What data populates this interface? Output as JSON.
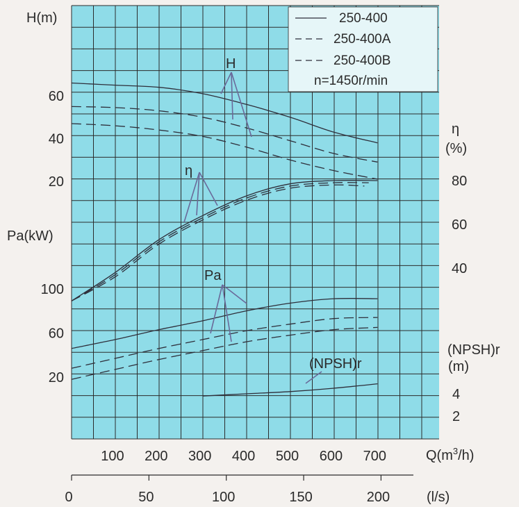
{
  "colors": {
    "plot_bg": "#8fdce8",
    "grid": "#2b2b2b",
    "curve": "#2e2e3a",
    "pointer": "#6a6a9a",
    "legend_bg": "#e6f6f8",
    "page_bg": "#f4f1ee"
  },
  "chart_data": {
    "type": "line",
    "title": "",
    "grid": true,
    "legend_position": "top-right",
    "x": {
      "label": "Q(m³/h)",
      "unit_label": "Q(m",
      "unit_sup": "3",
      "unit_tail": "/h)",
      "range": [
        0,
        800
      ],
      "ticks": [
        "100",
        "200",
        "300",
        "400",
        "500",
        "600",
        "700"
      ],
      "secondary_label": "(l/s)",
      "secondary_ticks": [
        "0",
        "50",
        "100",
        "150",
        "200"
      ]
    },
    "y_head": {
      "label": "H(m)",
      "ticks": [
        "20",
        "40",
        "60"
      ]
    },
    "y_power": {
      "label": "Pa(kW)",
      "ticks": [
        "20",
        "60",
        "100"
      ]
    },
    "y_eff": {
      "label": "η",
      "unit": "(%)",
      "ticks": [
        "40",
        "60",
        "80"
      ]
    },
    "y_npsh": {
      "label": "(NPSH)r",
      "unit": "(m)",
      "ticks": [
        "2",
        "4"
      ]
    },
    "legend": [
      {
        "name": "250-400",
        "style": "solid"
      },
      {
        "name": "250-400A",
        "style": "dashed"
      },
      {
        "name": "250-400B",
        "style": "dashed"
      }
    ],
    "annotation_speed": "n=1450r/min",
    "curve_labels": {
      "head": "H",
      "eff": "η",
      "power": "Pa",
      "npsh": "(NPSH)r"
    },
    "series": [
      {
        "name": "250-400",
        "quantity": "H",
        "unit": "m",
        "points": [
          [
            0,
            66
          ],
          [
            100,
            65
          ],
          [
            200,
            64
          ],
          [
            300,
            61
          ],
          [
            400,
            56
          ],
          [
            500,
            50
          ],
          [
            600,
            43
          ],
          [
            700,
            38
          ]
        ]
      },
      {
        "name": "250-400A",
        "quantity": "H",
        "unit": "m",
        "points": [
          [
            0,
            55
          ],
          [
            100,
            54.5
          ],
          [
            200,
            53
          ],
          [
            300,
            50
          ],
          [
            400,
            45
          ],
          [
            500,
            39
          ],
          [
            600,
            33
          ],
          [
            700,
            29
          ]
        ]
      },
      {
        "name": "250-400B",
        "quantity": "H",
        "unit": "m",
        "points": [
          [
            0,
            47
          ],
          [
            100,
            46
          ],
          [
            200,
            44
          ],
          [
            300,
            41
          ],
          [
            400,
            36
          ],
          [
            500,
            30
          ],
          [
            600,
            25
          ],
          [
            700,
            21
          ]
        ]
      },
      {
        "name": "250-400",
        "quantity": "η",
        "unit": "%",
        "points": [
          [
            0,
            25
          ],
          [
            100,
            38
          ],
          [
            200,
            53
          ],
          [
            300,
            64
          ],
          [
            400,
            73
          ],
          [
            500,
            78.5
          ],
          [
            600,
            80
          ],
          [
            700,
            80
          ]
        ]
      },
      {
        "name": "250-400A",
        "quantity": "η",
        "unit": "%",
        "points": [
          [
            0,
            25
          ],
          [
            100,
            37
          ],
          [
            200,
            52
          ],
          [
            300,
            63
          ],
          [
            400,
            72
          ],
          [
            500,
            77.5
          ],
          [
            600,
            79
          ],
          [
            680,
            79
          ]
        ]
      },
      {
        "name": "250-400B",
        "quantity": "η",
        "unit": "%",
        "points": [
          [
            0,
            25
          ],
          [
            100,
            36
          ],
          [
            200,
            51
          ],
          [
            300,
            62
          ],
          [
            400,
            71
          ],
          [
            500,
            76.5
          ],
          [
            600,
            78
          ],
          [
            670,
            77.5
          ]
        ]
      },
      {
        "name": "250-400",
        "quantity": "Pa",
        "unit": "kW",
        "points": [
          [
            0,
            46
          ],
          [
            100,
            54
          ],
          [
            200,
            63
          ],
          [
            300,
            71
          ],
          [
            400,
            80
          ],
          [
            500,
            87
          ],
          [
            600,
            91
          ],
          [
            700,
            91
          ]
        ]
      },
      {
        "name": "250-400A",
        "quantity": "Pa",
        "unit": "kW",
        "points": [
          [
            0,
            28
          ],
          [
            100,
            37
          ],
          [
            200,
            46
          ],
          [
            300,
            54
          ],
          [
            400,
            62
          ],
          [
            500,
            68
          ],
          [
            600,
            73
          ],
          [
            700,
            74
          ]
        ]
      },
      {
        "name": "250-400B",
        "quantity": "Pa",
        "unit": "kW",
        "points": [
          [
            0,
            18
          ],
          [
            100,
            27
          ],
          [
            200,
            36
          ],
          [
            300,
            44
          ],
          [
            400,
            52
          ],
          [
            500,
            58
          ],
          [
            600,
            63
          ],
          [
            700,
            65
          ]
        ]
      },
      {
        "name": "250-400",
        "quantity": "(NPSH)r",
        "unit": "m",
        "points": [
          [
            300,
            3.8
          ],
          [
            400,
            4.0
          ],
          [
            500,
            4.2
          ],
          [
            600,
            4.5
          ],
          [
            700,
            4.9
          ]
        ]
      }
    ]
  }
}
